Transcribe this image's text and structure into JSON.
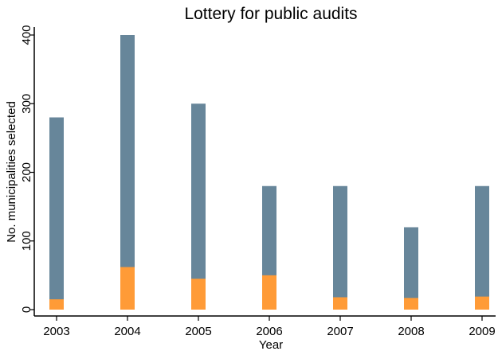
{
  "chart_data": {
    "type": "bar",
    "stacked": false,
    "overlaid": true,
    "title": "Lottery for public audits",
    "xlabel": "Year",
    "ylabel": "No. municipalities selected",
    "categories": [
      "2003",
      "2004",
      "2005",
      "2006",
      "2007",
      "2008",
      "2009"
    ],
    "ylim": [
      0,
      400
    ],
    "yticks": [
      0,
      100,
      200,
      300,
      400
    ],
    "grid": false,
    "legend": "none",
    "series": [
      {
        "values": [
          280,
          400,
          300,
          180,
          180,
          120,
          180
        ],
        "color": "#67869a"
      },
      {
        "values": [
          15,
          62,
          45,
          50,
          18,
          17,
          19
        ],
        "color": "#ff9b37"
      }
    ]
  }
}
